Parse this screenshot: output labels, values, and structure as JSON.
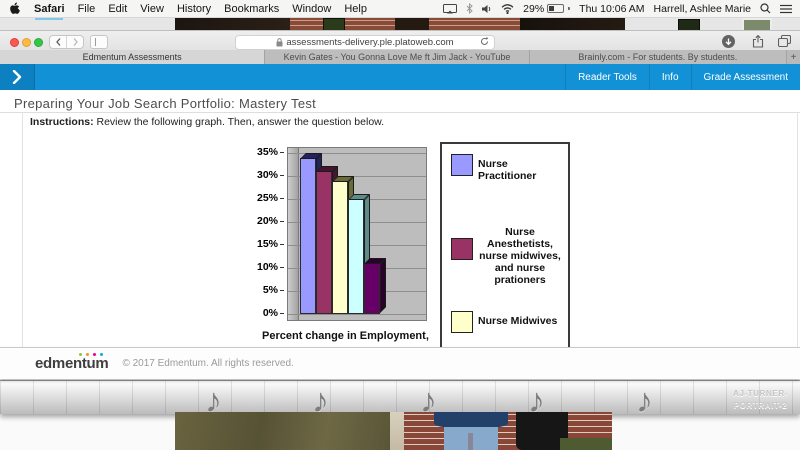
{
  "menubar": {
    "apple_logo": "apple",
    "items": [
      "Safari",
      "File",
      "Edit",
      "View",
      "History",
      "Bookmarks",
      "Window",
      "Help"
    ],
    "battery": "29%",
    "time": "Thu 10:06 AM",
    "user": "Harrell, Ashlee Marie"
  },
  "toolbar": {
    "url": "assessments-delivery.ple.platoweb.com"
  },
  "tabs": [
    {
      "label": "Edmentum Assessments",
      "active": true
    },
    {
      "label": "Kevin Gates - You Gonna Love Me ft Jim Jack - YouTube",
      "active": false
    },
    {
      "label": "Brainly.com - For students. By students.",
      "active": false
    }
  ],
  "newtab": "+",
  "app_header": {
    "accent_color": "#1291d6",
    "links": [
      "Reader Tools",
      "Info",
      "Grade Assessment"
    ]
  },
  "page": {
    "title": "Preparing Your Job Search Portfolio: Mastery Test",
    "instructions_label": "Instructions:",
    "instructions_text": " Review the following graph. Then, answer the question below."
  },
  "chart_data": {
    "type": "bar",
    "title": "",
    "caption": "Percent change in Employment,",
    "values": [
      34,
      31,
      29,
      25,
      11
    ],
    "categories": [
      "Nurse Practitioner",
      "Nurse Anesthetists, nurse midwives, and nurse prationers",
      "Nurse Midwives",
      "",
      ""
    ],
    "bar_colors": [
      "#9999ff",
      "#993366",
      "#ffffcc",
      "#ccffff",
      "#660066"
    ],
    "shade_colors": [
      "#23235e",
      "#47152f",
      "#6b6b3a",
      "#5e8a8a",
      "#2b002d"
    ],
    "ylim": [
      0,
      35
    ],
    "ytick_step": 5,
    "yticks": [
      "35%",
      "30%",
      "25%",
      "20%",
      "15%",
      "10%",
      "5%",
      "0%"
    ],
    "grid": true,
    "plot_background": "#bdbdbd",
    "legend_position": "right",
    "legend": [
      {
        "label": "Nurse Practitioner",
        "color": "#9999ff"
      },
      {
        "label": "Nurse Anesthetists,\nnurse midwives,\nand nurse prationers",
        "color": "#993366"
      },
      {
        "label": "Nurse Midwives",
        "color": "#ffffcc"
      }
    ]
  },
  "footer": {
    "logo": "edmentum",
    "copyright": "© 2017 Edmentum. All rights reserved.",
    "logo_dot_colors": [
      "#8dc63f",
      "#f7941e",
      "#ec008c",
      "#00aeef"
    ]
  },
  "desktop": {
    "note": "♪",
    "file_label1": "AJ-TURNER-",
    "file_label2": "PORTRAIT-2"
  }
}
